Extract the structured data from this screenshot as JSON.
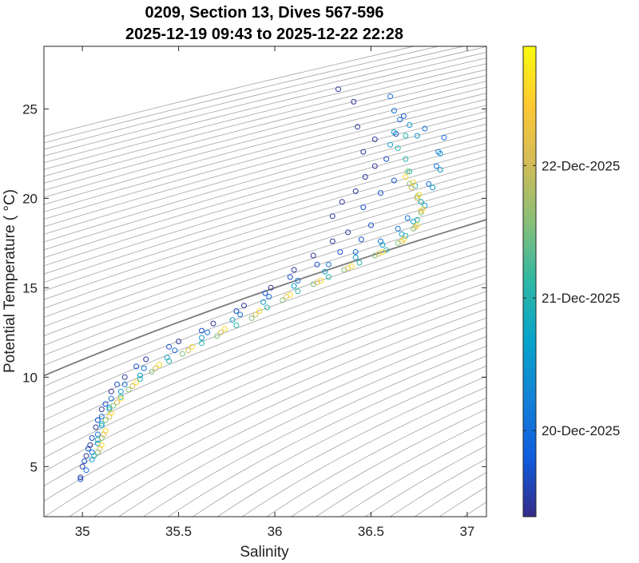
{
  "chart_data": {
    "type": "scatter",
    "title_line1": "0209, Section 13, Dives 567-596",
    "title_line2": "2025-12-19 09:43 to 2025-12-22 22:28",
    "xlabel": "Salinity",
    "ylabel": "Potential Temperature ( °C)",
    "xlim": [
      34.8,
      37.1
    ],
    "ylim": [
      2.2,
      28.5
    ],
    "xticks": [
      35,
      35.5,
      36,
      36.5,
      37
    ],
    "xtick_labels": [
      "35",
      "35.5",
      "36",
      "36.5",
      "37"
    ],
    "yticks": [
      5,
      10,
      15,
      20,
      25
    ],
    "ytick_labels": [
      "5",
      "10",
      "15",
      "20",
      "25"
    ],
    "grid": false,
    "background_contours": "density isopycnals (thin grey), one highlighted (thicker grey)",
    "marker": "open circle",
    "colormap": "parula",
    "colorbar": {
      "range": [
        20.35,
        23.9
      ],
      "ticks": [
        21,
        22,
        23
      ],
      "tick_labels": [
        "20-Dec-2025",
        "21-Dec-2025",
        "22-Dec-2025"
      ],
      "color_stops": [
        "#352a87",
        "#0f5cdd",
        "#1481d6",
        "#06a4ca",
        "#2eb7a4",
        "#87bf77",
        "#d1bb59",
        "#fec832",
        "#f9fb0e"
      ]
    },
    "series": [
      {
        "color_value": 20.45,
        "points": [
          [
            34.99,
            4.4
          ],
          [
            35.0,
            5.0
          ],
          [
            35.02,
            5.6
          ],
          [
            35.04,
            6.2
          ],
          [
            35.07,
            7.2
          ],
          [
            35.1,
            8.2
          ],
          [
            35.15,
            9.2
          ],
          [
            35.22,
            10.0
          ],
          [
            35.33,
            11.0
          ],
          [
            35.5,
            12.0
          ],
          [
            35.68,
            13.0
          ],
          [
            35.84,
            14.0
          ],
          [
            35.98,
            15.0
          ],
          [
            36.1,
            16.0
          ],
          [
            36.2,
            16.8
          ],
          [
            36.3,
            17.6
          ],
          [
            36.38,
            18.1
          ],
          [
            36.3,
            19.0
          ],
          [
            36.35,
            19.8
          ],
          [
            36.42,
            20.4
          ],
          [
            36.47,
            21.2
          ],
          [
            36.52,
            21.8
          ],
          [
            36.46,
            22.6
          ],
          [
            36.52,
            23.3
          ],
          [
            36.43,
            24.0
          ],
          [
            36.41,
            25.4
          ],
          [
            36.33,
            26.1
          ]
        ]
      },
      {
        "color_value": 20.7,
        "points": [
          [
            34.99,
            4.3
          ],
          [
            35.01,
            5.3
          ],
          [
            35.03,
            6.0
          ],
          [
            35.05,
            6.6
          ],
          [
            35.08,
            7.6
          ],
          [
            35.12,
            8.5
          ],
          [
            35.18,
            9.6
          ],
          [
            35.28,
            10.6
          ],
          [
            35.45,
            11.7
          ],
          [
            35.62,
            12.6
          ],
          [
            35.8,
            13.7
          ],
          [
            35.95,
            14.7
          ],
          [
            36.08,
            15.6
          ],
          [
            36.22,
            16.3
          ],
          [
            36.34,
            17.0
          ],
          [
            36.45,
            17.7
          ],
          [
            36.5,
            18.5
          ],
          [
            36.46,
            19.5
          ],
          [
            36.55,
            20.3
          ],
          [
            36.62,
            21.0
          ],
          [
            36.58,
            22.2
          ],
          [
            36.63,
            23.6
          ],
          [
            36.67,
            24.6
          ]
        ]
      },
      {
        "color_value": 21.05,
        "points": [
          [
            35.02,
            4.8
          ],
          [
            35.05,
            5.8
          ],
          [
            35.08,
            6.8
          ],
          [
            35.1,
            7.8
          ],
          [
            35.15,
            8.8
          ],
          [
            35.22,
            9.6
          ],
          [
            35.32,
            10.5
          ],
          [
            35.48,
            11.5
          ],
          [
            35.65,
            12.5
          ],
          [
            35.82,
            13.5
          ],
          [
            35.97,
            14.5
          ],
          [
            36.12,
            15.4
          ],
          [
            36.28,
            16.3
          ],
          [
            36.42,
            17.0
          ],
          [
            36.55,
            17.6
          ],
          [
            36.64,
            18.3
          ],
          [
            36.69,
            18.9
          ],
          [
            36.76,
            19.8
          ],
          [
            36.8,
            20.8
          ],
          [
            36.84,
            21.8
          ],
          [
            36.85,
            22.6
          ],
          [
            36.88,
            23.4
          ],
          [
            36.78,
            23.9
          ],
          [
            36.65,
            24.4
          ],
          [
            36.62,
            24.9
          ],
          [
            36.6,
            25.7
          ]
        ]
      },
      {
        "color_value": 21.55,
        "points": [
          [
            35.05,
            5.4
          ],
          [
            35.08,
            6.3
          ],
          [
            35.1,
            7.3
          ],
          [
            35.14,
            8.3
          ],
          [
            35.2,
            9.2
          ],
          [
            35.3,
            10.1
          ],
          [
            35.44,
            11.1
          ],
          [
            35.62,
            12.2
          ],
          [
            35.78,
            13.2
          ],
          [
            35.94,
            14.2
          ],
          [
            36.1,
            15.1
          ],
          [
            36.26,
            15.9
          ],
          [
            36.42,
            16.7
          ],
          [
            36.56,
            17.4
          ],
          [
            36.66,
            18.0
          ],
          [
            36.72,
            18.7
          ],
          [
            36.78,
            19.6
          ],
          [
            36.82,
            20.6
          ],
          [
            36.86,
            21.6
          ],
          [
            36.86,
            22.5
          ],
          [
            36.74,
            23.5
          ],
          [
            36.7,
            24.1
          ],
          [
            36.62,
            23.7
          ],
          [
            36.6,
            23.0
          ]
        ]
      },
      {
        "color_value": 22.05,
        "points": [
          [
            35.06,
            5.6
          ],
          [
            35.08,
            6.5
          ],
          [
            35.1,
            7.4
          ],
          [
            35.14,
            8.2
          ],
          [
            35.2,
            8.9
          ],
          [
            35.3,
            9.9
          ],
          [
            35.45,
            10.9
          ],
          [
            35.62,
            11.9
          ],
          [
            35.8,
            12.9
          ],
          [
            35.96,
            13.9
          ],
          [
            36.12,
            14.8
          ],
          [
            36.28,
            15.6
          ],
          [
            36.44,
            16.4
          ],
          [
            36.58,
            17.1
          ],
          [
            36.68,
            17.9
          ],
          [
            36.74,
            18.8
          ],
          [
            36.76,
            19.8
          ],
          [
            36.73,
            20.7
          ],
          [
            36.7,
            21.5
          ],
          [
            36.68,
            22.2
          ],
          [
            36.64,
            22.8
          ],
          [
            36.68,
            23.5
          ]
        ]
      },
      {
        "color_value": 22.55,
        "points": [
          [
            35.08,
            5.8
          ],
          [
            35.1,
            6.6
          ],
          [
            35.12,
            7.6
          ],
          [
            35.16,
            8.4
          ],
          [
            35.24,
            9.3
          ],
          [
            35.36,
            10.3
          ],
          [
            35.52,
            11.3
          ],
          [
            35.7,
            12.3
          ],
          [
            35.88,
            13.3
          ],
          [
            36.04,
            14.3
          ],
          [
            36.2,
            15.2
          ],
          [
            36.36,
            16.0
          ],
          [
            36.52,
            16.8
          ],
          [
            36.64,
            17.5
          ],
          [
            36.72,
            18.3
          ],
          [
            36.76,
            19.2
          ],
          [
            36.74,
            20.1
          ],
          [
            36.7,
            20.8
          ],
          [
            36.69,
            21.5
          ]
        ]
      },
      {
        "color_value": 23.05,
        "points": [
          [
            35.09,
            6.0
          ],
          [
            35.11,
            6.8
          ],
          [
            35.14,
            7.8
          ],
          [
            35.18,
            8.6
          ],
          [
            35.26,
            9.5
          ],
          [
            35.38,
            10.5
          ],
          [
            35.55,
            11.5
          ],
          [
            35.72,
            12.5
          ],
          [
            35.9,
            13.5
          ],
          [
            36.06,
            14.5
          ],
          [
            36.22,
            15.3
          ],
          [
            36.38,
            16.1
          ],
          [
            36.54,
            16.9
          ],
          [
            36.66,
            17.6
          ],
          [
            36.73,
            18.4
          ],
          [
            36.76,
            19.3
          ],
          [
            36.74,
            20.0
          ],
          [
            36.71,
            20.6
          ]
        ]
      },
      {
        "color_value": 23.6,
        "points": [
          [
            35.1,
            6.2
          ],
          [
            35.12,
            7.0
          ],
          [
            35.15,
            8.0
          ],
          [
            35.2,
            8.8
          ],
          [
            35.28,
            9.7
          ],
          [
            35.4,
            10.7
          ],
          [
            35.57,
            11.7
          ],
          [
            35.74,
            12.7
          ],
          [
            35.92,
            13.7
          ],
          [
            36.08,
            14.6
          ],
          [
            36.24,
            15.4
          ],
          [
            36.4,
            16.2
          ],
          [
            36.56,
            17.0
          ],
          [
            36.67,
            17.7
          ],
          [
            36.74,
            18.5
          ],
          [
            36.77,
            19.4
          ],
          [
            36.75,
            20.2
          ],
          [
            36.72,
            20.9
          ],
          [
            36.68,
            21.2
          ]
        ]
      }
    ]
  }
}
